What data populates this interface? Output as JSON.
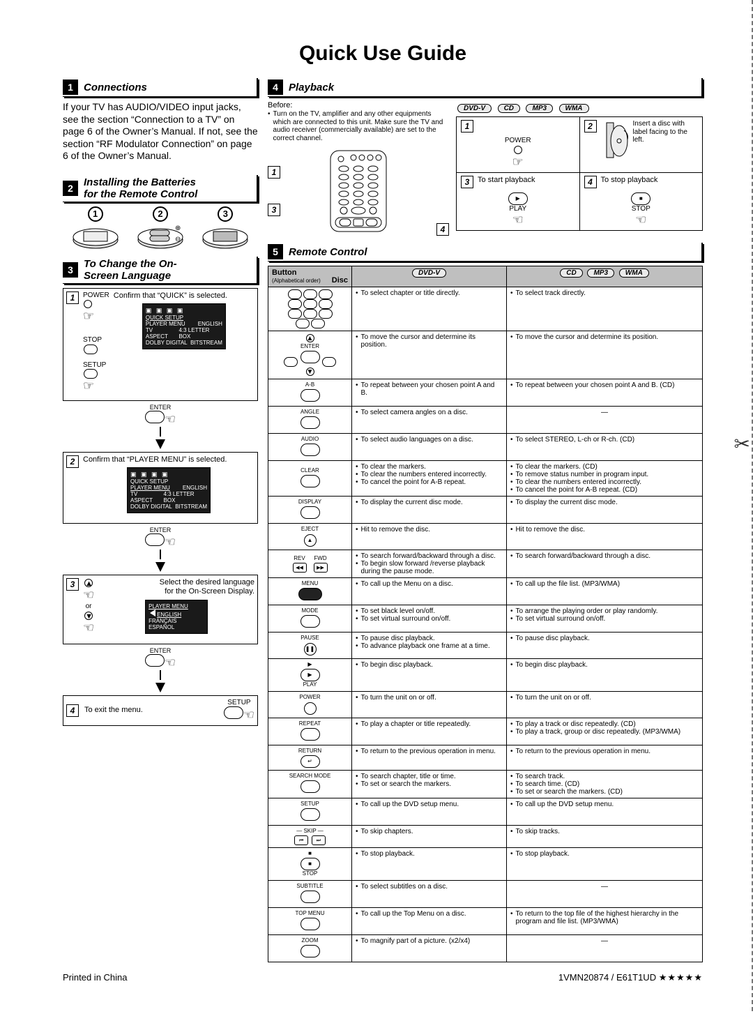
{
  "title": "Quick Use Guide",
  "sections": {
    "s1": {
      "num": "1",
      "title": "Connections",
      "text": "If your TV has AUDIO/VIDEO input jacks, see the section “Connection to a TV” on page 6 of the Owner’s Manual. If not, see the section “RF Modulator Connection” on page 6 of the Owner’s Manual."
    },
    "s2": {
      "num": "2",
      "title_l1": "Installing the Batteries",
      "title_l2": "for the Remote Control"
    },
    "s3": {
      "num": "3",
      "title_l1": "To Change the On-",
      "title_l2": "Screen Language",
      "step1": {
        "label": "POWER",
        "text": "Confirm that “QUICK” is selected.",
        "osd_icons": [
          "▣",
          "▣",
          "▣",
          "▣"
        ],
        "osd_rows": [
          [
            "QUICK SETUP",
            ""
          ],
          [
            "PLAYER MENU",
            "ENGLISH"
          ],
          [
            "TV ASPECT",
            "4:3 LETTER BOX"
          ],
          [
            "DOLBY DIGITAL",
            "BITSTREAM"
          ]
        ],
        "stop": "STOP",
        "setup": "SETUP",
        "enter": "ENTER"
      },
      "step2": {
        "text": "Confirm that “PLAYER MENU” is selected.",
        "osd_rows": [
          [
            "QUICK SETUP",
            ""
          ],
          [
            "PLAYER MENU",
            "ENGLISH"
          ],
          [
            "TV ASPECT",
            "4:3 LETTER BOX"
          ],
          [
            "DOLBY DIGITAL",
            "BITSTREAM"
          ]
        ],
        "enter": "ENTER"
      },
      "step3": {
        "text_l1": "Select the desired language",
        "text_l2": "for the On-Screen Display.",
        "or": "or",
        "osd_rows": [
          [
            "PLAYER MENU"
          ],
          [
            "ENGLISH"
          ],
          [
            "FRANÇAIS"
          ],
          [
            "ESPAÑOL"
          ]
        ],
        "enter": "ENTER"
      },
      "step4": {
        "text": "To exit the menu.",
        "setup": "SETUP"
      }
    },
    "s4": {
      "num": "4",
      "title": "Playback",
      "before_label": "Before:",
      "before_text": "Turn on the TV, amplifier and any other equipments which are connected to this unit. Make sure the TV and audio receiver (commercially available) are set to the correct channel.",
      "formats": [
        "DVD-V",
        "CD",
        "MP3",
        "WMA"
      ],
      "cells": {
        "c1": {
          "badge": "1",
          "label": "POWER"
        },
        "c2": {
          "badge": "2",
          "text": "Insert a disc with label facing to the left."
        },
        "c3": {
          "badge": "3",
          "text": "To start playback",
          "btn": "PLAY",
          "sym": "▶"
        },
        "c4": {
          "badge": "4",
          "text": "To stop playback",
          "btn": "STOP",
          "sym": "■"
        }
      }
    },
    "s5": {
      "num": "5",
      "title": "Remote Control",
      "hdr": {
        "button": "Button",
        "alpha": "(Alphabetical order)",
        "disc": "Disc",
        "col1": "DVD-V",
        "col2a": "CD",
        "col2b": "MP3",
        "col2c": "WMA"
      },
      "rows": [
        {
          "btn_type": "numbers",
          "c1": [
            "To select chapter or title directly."
          ],
          "c2": [
            "To select track directly."
          ]
        },
        {
          "btn_type": "dpad",
          "label": "ENTER",
          "c1": [
            "To move the cursor and determine its position."
          ],
          "c2": [
            "To move the cursor and determine its position."
          ]
        },
        {
          "btn_type": "oval",
          "label": "A-B",
          "c1": [
            "To repeat between your chosen point A and B."
          ],
          "c2": [
            "To repeat between your chosen point A and B. (CD)"
          ]
        },
        {
          "btn_type": "oval",
          "label": "ANGLE",
          "c1": [
            "To select camera angles on a disc."
          ],
          "c2": [
            "—"
          ]
        },
        {
          "btn_type": "oval",
          "label": "AUDIO",
          "c1": [
            "To select audio languages on a disc."
          ],
          "c2": [
            "To select STEREO, L-ch or R-ch. (CD)"
          ]
        },
        {
          "btn_type": "oval",
          "label": "CLEAR",
          "c1": [
            "To clear the markers.",
            "To clear the numbers entered incorrectly.",
            "To cancel the point for A-B repeat."
          ],
          "c2": [
            "To clear the markers. (CD)",
            "To remove status number in program input.",
            "To clear the numbers entered incorrectly.",
            "To cancel the point for A-B repeat. (CD)"
          ]
        },
        {
          "btn_type": "oval",
          "label": "DISPLAY",
          "c1": [
            "To display the current disc mode."
          ],
          "c2": [
            "To display the current disc mode."
          ]
        },
        {
          "btn_type": "round",
          "label": "EJECT",
          "sym": "▲",
          "c1": [
            "Hit to remove the disc."
          ],
          "c2": [
            "Hit to remove the disc."
          ]
        },
        {
          "btn_type": "dual",
          "label_l": "REV",
          "sym_l": "◀◀",
          "label_r": "FWD",
          "sym_r": "▶▶",
          "c1": [
            "To search forward/backward through a disc.",
            "To begin slow forward /reverse playback during the pause mode."
          ],
          "c2": [
            "To search forward/backward through a disc."
          ]
        },
        {
          "btn_type": "widepill",
          "label": "MENU",
          "c1": [
            "To call up the Menu on a disc."
          ],
          "c2": [
            "To call up the file list. (MP3/WMA)"
          ]
        },
        {
          "btn_type": "oval",
          "label": "MODE",
          "c1": [
            "To set black level on/off.",
            "To set virtual surround on/off."
          ],
          "c2": [
            "To arrange the playing order or play randomly.",
            "To set virtual surround on/off."
          ]
        },
        {
          "btn_type": "round",
          "label": "PAUSE",
          "sym": "❚❚",
          "c1": [
            "To pause disc playback.",
            "To advance playback one frame at a time."
          ],
          "c2": [
            "To pause disc playback."
          ]
        },
        {
          "btn_type": "pill",
          "label": "PLAY",
          "sym": "▶",
          "c1": [
            "To begin disc playback."
          ],
          "c2": [
            "To begin disc playback."
          ]
        },
        {
          "btn_type": "round",
          "label": "POWER",
          "c1": [
            "To turn the unit on or off."
          ],
          "c2": [
            "To turn the unit on or off."
          ]
        },
        {
          "btn_type": "oval",
          "label": "REPEAT",
          "c1": [
            "To play a chapter or title repeatedly."
          ],
          "c2": [
            "To play a track or disc repeatedly. (CD)",
            "To play a track, group or disc repeatedly. (MP3/WMA)"
          ]
        },
        {
          "btn_type": "oval",
          "label": "RETURN",
          "sym": "↵",
          "c1": [
            "To return to the previous operation in menu."
          ],
          "c2": [
            "To return to the previous operation in menu."
          ]
        },
        {
          "btn_type": "oval",
          "label": "SEARCH MODE",
          "c1": [
            "To search chapter, title or time.",
            "To set or search the markers."
          ],
          "c2": [
            "To search track.",
            "To search time. (CD)",
            "To set or search the markers. (CD)"
          ]
        },
        {
          "btn_type": "oval",
          "label": "SETUP",
          "c1": [
            "To call up the DVD setup menu."
          ],
          "c2": [
            "To call up the DVD setup menu."
          ]
        },
        {
          "btn_type": "skip",
          "label": "SKIP",
          "sym_l": "⏮",
          "sym_r": "⏭",
          "c1": [
            "To skip chapters."
          ],
          "c2": [
            "To skip tracks."
          ]
        },
        {
          "btn_type": "pill",
          "label": "STOP",
          "sym": "■",
          "c1": [
            "To stop playback."
          ],
          "c2": [
            "To stop playback."
          ]
        },
        {
          "btn_type": "oval",
          "label": "SUBTITLE",
          "c1": [
            "To select subtitles on a disc."
          ],
          "c2": [
            "—"
          ]
        },
        {
          "btn_type": "oval",
          "label": "TOP MENU",
          "c1": [
            "To call up the Top Menu on a disc."
          ],
          "c2": [
            "To return to the top file of the highest hierarchy in the program and file list. (MP3/WMA)"
          ]
        },
        {
          "btn_type": "oval",
          "label": "ZOOM",
          "c1": [
            "To magnify part of a picture. (x2/x4)"
          ],
          "c2": [
            "—"
          ]
        }
      ]
    }
  },
  "footer": {
    "left": "Printed in China",
    "right": "1VMN20874 / E61T1UD",
    "stars": "★★★★★"
  }
}
